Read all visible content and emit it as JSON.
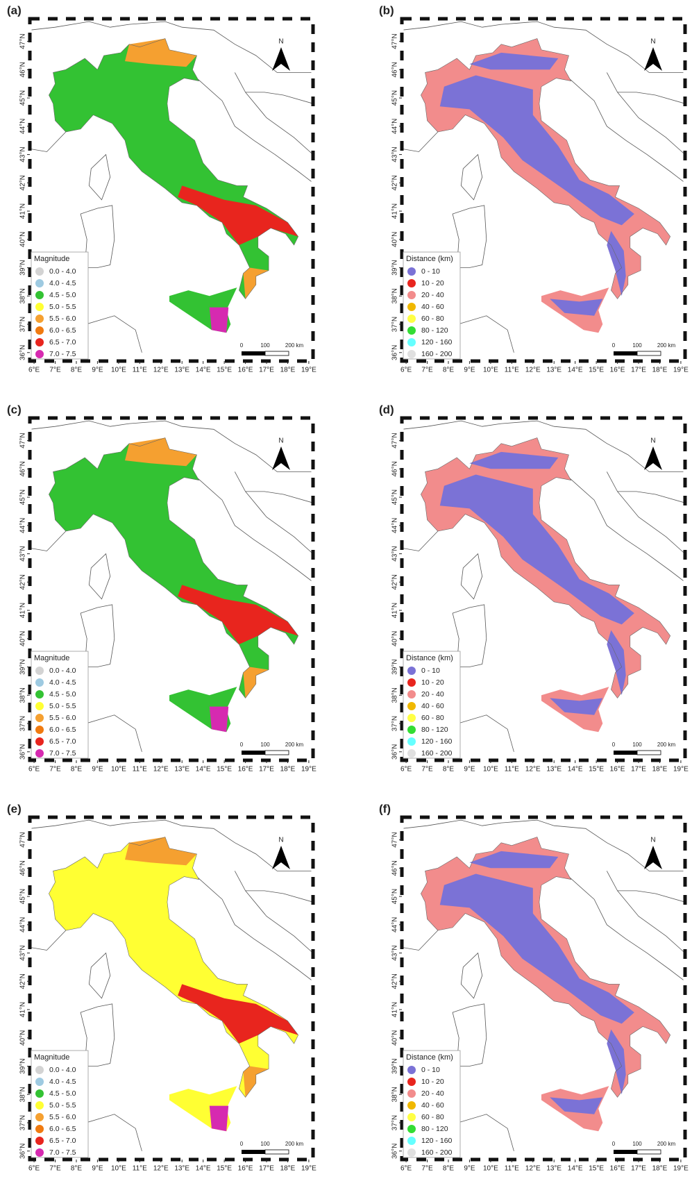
{
  "xlim": [
    5.8,
    19.2
  ],
  "ylim": [
    35.7,
    47.8
  ],
  "panels": [
    {
      "label": "(a)",
      "legend_title": "Magnitude",
      "north": "N",
      "scale_labels": [
        "0",
        "100",
        "200 km"
      ],
      "legend": [
        {
          "label": "0.0 - 4.0",
          "color": "#d3d3d3"
        },
        {
          "label": "4.0 - 4.5",
          "color": "#9ecae1"
        },
        {
          "label": "4.5 - 5.0",
          "color": "#33c233"
        },
        {
          "label": "5.0 - 5.5",
          "color": "#ffff33"
        },
        {
          "label": "5.5 - 6.0",
          "color": "#f5a030"
        },
        {
          "label": "6.0 - 6.5",
          "color": "#f07a10"
        },
        {
          "label": "6.5 - 7.0",
          "color": "#e8251e"
        },
        {
          "label": "7.0 - 7.5",
          "color": "#d62ab0"
        }
      ],
      "xticks": [
        {
          "value": 6,
          "label": "6°E"
        },
        {
          "value": 7,
          "label": "7°E"
        },
        {
          "value": 8,
          "label": "8°E"
        },
        {
          "value": 9,
          "label": "9°E"
        },
        {
          "value": 10,
          "label": "10°E"
        },
        {
          "value": 11,
          "label": "11°E"
        },
        {
          "value": 12,
          "label": "12°E"
        },
        {
          "value": 13,
          "label": "13°E"
        },
        {
          "value": 14,
          "label": "14°E"
        },
        {
          "value": 15,
          "label": "15°E"
        },
        {
          "value": 16,
          "label": "16°E"
        },
        {
          "value": 17,
          "label": "17°E"
        },
        {
          "value": 18,
          "label": "18°E"
        },
        {
          "value": 19,
          "label": "19°E"
        }
      ],
      "yticks": [
        {
          "value": 36,
          "label": "36°N"
        },
        {
          "value": 37,
          "label": "37°N"
        },
        {
          "value": 38,
          "label": "38°N"
        },
        {
          "value": 39,
          "label": "39°N"
        },
        {
          "value": 40,
          "label": "40°N"
        },
        {
          "value": 41,
          "label": "41°N"
        },
        {
          "value": 42,
          "label": "42°N"
        },
        {
          "value": 43,
          "label": "43°N"
        },
        {
          "value": 44,
          "label": "44°N"
        },
        {
          "value": 45,
          "label": "45°N"
        },
        {
          "value": 46,
          "label": "46°N"
        },
        {
          "value": 47,
          "label": "47°N"
        }
      ]
    },
    {
      "label": "(b)",
      "legend_title": "Distance (km)",
      "north": "N",
      "scale_labels": [
        "0",
        "100",
        "200 km"
      ],
      "legend": [
        {
          "label": "0 - 10",
          "color": "#7b72d6"
        },
        {
          "label": "10 - 20",
          "color": "#e8251e"
        },
        {
          "label": "20 - 40",
          "color": "#f28c8c"
        },
        {
          "label": "40 - 60",
          "color": "#f0b800"
        },
        {
          "label": "60 - 80",
          "color": "#ffff44"
        },
        {
          "label": "80 - 120",
          "color": "#33dd33"
        },
        {
          "label": "120 - 160",
          "color": "#66ffff"
        },
        {
          "label": "160 - 200",
          "color": "#e0e0e0"
        }
      ],
      "xticks": [
        {
          "value": 6,
          "label": "6°E"
        },
        {
          "value": 7,
          "label": "7°E"
        },
        {
          "value": 8,
          "label": "8°E"
        },
        {
          "value": 9,
          "label": "9°E"
        },
        {
          "value": 10,
          "label": "10°E"
        },
        {
          "value": 11,
          "label": "11°E"
        },
        {
          "value": 12,
          "label": "12°E"
        },
        {
          "value": 13,
          "label": "13°E"
        },
        {
          "value": 14,
          "label": "14°E"
        },
        {
          "value": 15,
          "label": "15°E"
        },
        {
          "value": 16,
          "label": "16°E"
        },
        {
          "value": 17,
          "label": "17°E"
        },
        {
          "value": 18,
          "label": "18°E"
        },
        {
          "value": 19,
          "label": "19°E"
        }
      ],
      "yticks": [
        {
          "value": 36,
          "label": "36°N"
        },
        {
          "value": 37,
          "label": "37°N"
        },
        {
          "value": 38,
          "label": "38°N"
        },
        {
          "value": 39,
          "label": "39°N"
        },
        {
          "value": 40,
          "label": "40°N"
        },
        {
          "value": 41,
          "label": "41°N"
        },
        {
          "value": 42,
          "label": "42°N"
        },
        {
          "value": 43,
          "label": "43°N"
        },
        {
          "value": 44,
          "label": "44°N"
        },
        {
          "value": 45,
          "label": "45°N"
        },
        {
          "value": 46,
          "label": "46°N"
        },
        {
          "value": 47,
          "label": "47°N"
        }
      ]
    },
    {
      "label": "(c)",
      "legend_title": "Magnitude",
      "north": "N",
      "scale_labels": [
        "0",
        "100",
        "200 km"
      ],
      "legend": [
        {
          "label": "0.0 - 4.0",
          "color": "#d3d3d3"
        },
        {
          "label": "4.0 - 4.5",
          "color": "#9ecae1"
        },
        {
          "label": "4.5 - 5.0",
          "color": "#33c233"
        },
        {
          "label": "5.0 - 5.5",
          "color": "#ffff33"
        },
        {
          "label": "5.5 - 6.0",
          "color": "#f5a030"
        },
        {
          "label": "6.0 - 6.5",
          "color": "#f07a10"
        },
        {
          "label": "6.5 - 7.0",
          "color": "#e8251e"
        },
        {
          "label": "7.0 - 7.5",
          "color": "#d62ab0"
        }
      ],
      "xticks": [
        {
          "value": 6,
          "label": "6°E"
        },
        {
          "value": 7,
          "label": "7°E"
        },
        {
          "value": 8,
          "label": "8°E"
        },
        {
          "value": 9,
          "label": "9°E"
        },
        {
          "value": 10,
          "label": "10°E"
        },
        {
          "value": 11,
          "label": "11°E"
        },
        {
          "value": 12,
          "label": "12°E"
        },
        {
          "value": 13,
          "label": "13°E"
        },
        {
          "value": 14,
          "label": "14°E"
        },
        {
          "value": 15,
          "label": "15°E"
        },
        {
          "value": 16,
          "label": "16°E"
        },
        {
          "value": 17,
          "label": "17°E"
        },
        {
          "value": 18,
          "label": "18°E"
        },
        {
          "value": 19,
          "label": "19°E"
        }
      ],
      "yticks": [
        {
          "value": 36,
          "label": "36°N"
        },
        {
          "value": 37,
          "label": "37°N"
        },
        {
          "value": 38,
          "label": "38°N"
        },
        {
          "value": 39,
          "label": "39°N"
        },
        {
          "value": 40,
          "label": "40°N"
        },
        {
          "value": 41,
          "label": "41°N"
        },
        {
          "value": 42,
          "label": "42°N"
        },
        {
          "value": 43,
          "label": "43°N"
        },
        {
          "value": 44,
          "label": "44°N"
        },
        {
          "value": 45,
          "label": "45°N"
        },
        {
          "value": 46,
          "label": "46°N"
        },
        {
          "value": 47,
          "label": "47°N"
        }
      ]
    },
    {
      "label": "(d)",
      "legend_title": "Distance (km)",
      "north": "N",
      "scale_labels": [
        "0",
        "100",
        "200 km"
      ],
      "legend": [
        {
          "label": "0 - 10",
          "color": "#7b72d6"
        },
        {
          "label": "10 - 20",
          "color": "#e8251e"
        },
        {
          "label": "20 - 40",
          "color": "#f28c8c"
        },
        {
          "label": "40 - 60",
          "color": "#f0b800"
        },
        {
          "label": "60 - 80",
          "color": "#ffff44"
        },
        {
          "label": "80 - 120",
          "color": "#33dd33"
        },
        {
          "label": "120 - 160",
          "color": "#66ffff"
        },
        {
          "label": "160 - 200",
          "color": "#e0e0e0"
        }
      ],
      "xticks": [
        {
          "value": 6,
          "label": "6°E"
        },
        {
          "value": 7,
          "label": "7°E"
        },
        {
          "value": 8,
          "label": "8°E"
        },
        {
          "value": 9,
          "label": "9°E"
        },
        {
          "value": 10,
          "label": "10°E"
        },
        {
          "value": 11,
          "label": "11°E"
        },
        {
          "value": 12,
          "label": "12°E"
        },
        {
          "value": 13,
          "label": "13°E"
        },
        {
          "value": 14,
          "label": "14°E"
        },
        {
          "value": 15,
          "label": "15°E"
        },
        {
          "value": 16,
          "label": "16°E"
        },
        {
          "value": 17,
          "label": "17°E"
        },
        {
          "value": 18,
          "label": "18°E"
        },
        {
          "value": 19,
          "label": "19°E"
        }
      ],
      "yticks": [
        {
          "value": 36,
          "label": "36°N"
        },
        {
          "value": 37,
          "label": "37°N"
        },
        {
          "value": 38,
          "label": "38°N"
        },
        {
          "value": 39,
          "label": "39°N"
        },
        {
          "value": 40,
          "label": "40°N"
        },
        {
          "value": 41,
          "label": "41°N"
        },
        {
          "value": 42,
          "label": "42°N"
        },
        {
          "value": 43,
          "label": "43°N"
        },
        {
          "value": 44,
          "label": "44°N"
        },
        {
          "value": 45,
          "label": "45°N"
        },
        {
          "value": 46,
          "label": "46°N"
        },
        {
          "value": 47,
          "label": "47°N"
        }
      ]
    },
    {
      "label": "(e)",
      "legend_title": "Magnitude",
      "north": "N",
      "scale_labels": [
        "0",
        "100",
        "200 km"
      ],
      "legend": [
        {
          "label": "0.0 - 4.0",
          "color": "#d3d3d3"
        },
        {
          "label": "4.0 - 4.5",
          "color": "#9ecae1"
        },
        {
          "label": "4.5 - 5.0",
          "color": "#33c233"
        },
        {
          "label": "5.0 - 5.5",
          "color": "#ffff33"
        },
        {
          "label": "5.5 - 6.0",
          "color": "#f5a030"
        },
        {
          "label": "6.0 - 6.5",
          "color": "#f07a10"
        },
        {
          "label": "6.5 - 7.0",
          "color": "#e8251e"
        },
        {
          "label": "7.0 - 7.5",
          "color": "#d62ab0"
        }
      ],
      "xticks": [
        {
          "value": 6,
          "label": "6°E"
        },
        {
          "value": 7,
          "label": "7°E"
        },
        {
          "value": 8,
          "label": "8°E"
        },
        {
          "value": 9,
          "label": "9°E"
        },
        {
          "value": 10,
          "label": "10°E"
        },
        {
          "value": 11,
          "label": "11°E"
        },
        {
          "value": 12,
          "label": "12°E"
        },
        {
          "value": 13,
          "label": "13°E"
        },
        {
          "value": 14,
          "label": "14°E"
        },
        {
          "value": 15,
          "label": "15°E"
        },
        {
          "value": 16,
          "label": "16°E"
        },
        {
          "value": 17,
          "label": "17°E"
        },
        {
          "value": 18,
          "label": "18°E"
        },
        {
          "value": 19,
          "label": "19°E"
        }
      ],
      "yticks": [
        {
          "value": 36,
          "label": "36°N"
        },
        {
          "value": 37,
          "label": "37°N"
        },
        {
          "value": 38,
          "label": "38°N"
        },
        {
          "value": 39,
          "label": "39°N"
        },
        {
          "value": 40,
          "label": "40°N"
        },
        {
          "value": 41,
          "label": "41°N"
        },
        {
          "value": 42,
          "label": "42°N"
        },
        {
          "value": 43,
          "label": "43°N"
        },
        {
          "value": 44,
          "label": "44°N"
        },
        {
          "value": 45,
          "label": "45°N"
        },
        {
          "value": 46,
          "label": "46°N"
        },
        {
          "value": 47,
          "label": "47°N"
        }
      ]
    },
    {
      "label": "(f)",
      "legend_title": "Distance (km)",
      "north": "N",
      "scale_labels": [
        "0",
        "100",
        "200 km"
      ],
      "legend": [
        {
          "label": "0 - 10",
          "color": "#7b72d6"
        },
        {
          "label": "10 - 20",
          "color": "#e8251e"
        },
        {
          "label": "20 - 40",
          "color": "#f28c8c"
        },
        {
          "label": "40 - 60",
          "color": "#f0b800"
        },
        {
          "label": "60 - 80",
          "color": "#ffff44"
        },
        {
          "label": "80 - 120",
          "color": "#33dd33"
        },
        {
          "label": "120 - 160",
          "color": "#66ffff"
        },
        {
          "label": "160 - 200",
          "color": "#e0e0e0"
        }
      ],
      "xticks": [
        {
          "value": 6,
          "label": "6°E"
        },
        {
          "value": 7,
          "label": "7°E"
        },
        {
          "value": 8,
          "label": "8°E"
        },
        {
          "value": 9,
          "label": "9°E"
        },
        {
          "value": 10,
          "label": "10°E"
        },
        {
          "value": 11,
          "label": "11°E"
        },
        {
          "value": 12,
          "label": "12°E"
        },
        {
          "value": 13,
          "label": "13°E"
        },
        {
          "value": 14,
          "label": "14°E"
        },
        {
          "value": 15,
          "label": "15°E"
        },
        {
          "value": 16,
          "label": "16°E"
        },
        {
          "value": 17,
          "label": "17°E"
        },
        {
          "value": 18,
          "label": "18°E"
        },
        {
          "value": 19,
          "label": "19°E"
        }
      ],
      "yticks": [
        {
          "value": 36,
          "label": "36°N"
        },
        {
          "value": 37,
          "label": "37°N"
        },
        {
          "value": 38,
          "label": "38°N"
        },
        {
          "value": 39,
          "label": "39°N"
        },
        {
          "value": 40,
          "label": "40°N"
        },
        {
          "value": 41,
          "label": "41°N"
        },
        {
          "value": 42,
          "label": "42°N"
        },
        {
          "value": 43,
          "label": "43°N"
        },
        {
          "value": 44,
          "label": "44°N"
        },
        {
          "value": 45,
          "label": "45°N"
        },
        {
          "value": 46,
          "label": "46°N"
        },
        {
          "value": 47,
          "label": "47°N"
        }
      ]
    }
  ]
}
